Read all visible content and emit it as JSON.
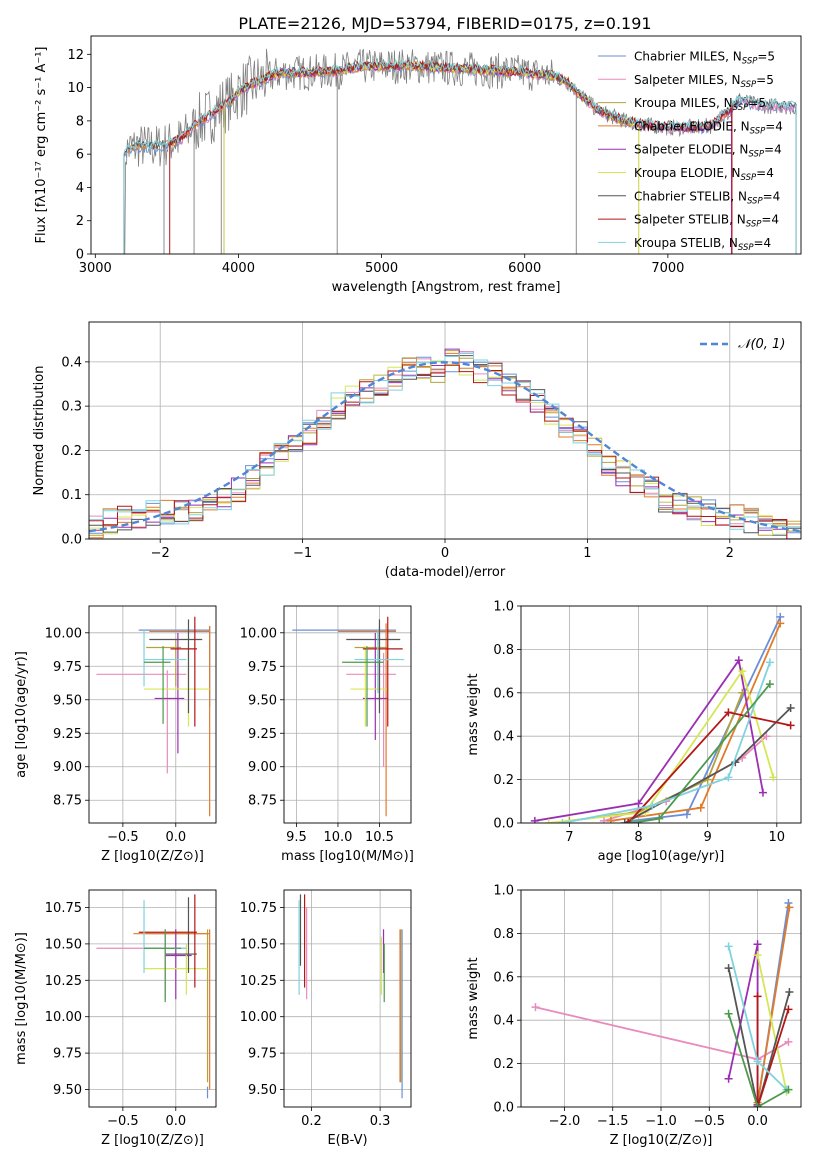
{
  "title": "PLATE=2126, MJD=53794, FIBERID=0175, z=0.191",
  "colors": {
    "Chabrier MILES": "#6a8fd6",
    "Salpeter MILES": "#e88bbd",
    "Kroupa MILES": "#b3a23a",
    "Chabrier ELODIE": "#e07b2c",
    "Salpeter ELODIE": "#9b2fb2",
    "Kroupa ELODIE": "#d7e655",
    "Chabrier STELIB": "#555555",
    "Salpeter STELIB": "#b31717",
    "Kroupa STELIB": "#7fd3df"
  },
  "chart_data": [
    {
      "id": "spectrum",
      "type": "line",
      "xlabel": "wavelength [Angstrom, rest frame]",
      "ylabel": "Flux [f",
      "xlim": [
        2970,
        7930
      ],
      "ylim": [
        0,
        13.1
      ],
      "xticks": [
        3000,
        4000,
        5000,
        6000,
        7000
      ],
      "yticks": [
        0,
        2,
        4,
        6,
        8,
        10,
        12
      ],
      "grid": false,
      "legend": "upper-right",
      "legend_labels": [
        "Chabrier MILES, N_SSP=5",
        "Salpeter MILES, N_SSP=5",
        "Kroupa MILES, N_SSP=5",
        "Chabrier ELODIE, N_SSP=4",
        "Salpeter ELODIE, N_SSP=4",
        "Kroupa ELODIE, N_SSP=4",
        "Chabrier STELIB, N_SSP=4",
        "Salpeter STELIB, N_SSP=4",
        "Kroupa STELIB, N_SSP=4"
      ],
      "data_x": [
        3200,
        3230,
        3300,
        3400,
        3500,
        3600,
        3700,
        3800,
        3900,
        3950,
        4000,
        4100,
        4200,
        4300,
        4500,
        4700,
        4800,
        5000,
        5200,
        5400,
        5600,
        5800,
        6000,
        6200,
        6300,
        6400,
        6500,
        6600,
        6700,
        6800,
        7000,
        7200,
        7300,
        7400,
        7500,
        7600,
        7700,
        7800,
        7900
      ],
      "data_y": [
        6.0,
        6.3,
        6.5,
        6.4,
        6.6,
        6.9,
        7.8,
        8.3,
        9.0,
        9.2,
        9.8,
        10.2,
        10.6,
        10.9,
        10.9,
        11.0,
        11.2,
        11.3,
        11.3,
        11.2,
        11.1,
        11.0,
        10.9,
        10.7,
        10.3,
        9.5,
        8.7,
        8.3,
        8.0,
        7.8,
        7.6,
        7.6,
        7.7,
        8.4,
        9.3,
        9.0,
        8.9,
        8.9,
        8.8
      ]
    },
    {
      "id": "residuals",
      "type": "line",
      "xlabel": "(data-model)/error",
      "ylabel": "Normed distribution",
      "xlim": [
        -2.5,
        2.5
      ],
      "ylim": [
        0,
        0.49
      ],
      "xticks": [
        -2,
        -1,
        0,
        1,
        2
      ],
      "yticks": [
        0.0,
        0.1,
        0.2,
        0.3,
        0.4
      ],
      "grid": true,
      "legend": "upper-right",
      "legend_label": "𝒩(0, 1)",
      "bin_width": 0.1,
      "histogram_values": [
        0.03,
        0.04,
        0.05,
        0.05,
        0.06,
        0.06,
        0.06,
        0.07,
        0.08,
        0.09,
        0.11,
        0.14,
        0.17,
        0.2,
        0.21,
        0.24,
        0.27,
        0.3,
        0.32,
        0.33,
        0.35,
        0.36,
        0.38,
        0.39,
        0.38,
        0.4,
        0.4,
        0.38,
        0.37,
        0.35,
        0.33,
        0.31,
        0.28,
        0.26,
        0.24,
        0.2,
        0.17,
        0.15,
        0.13,
        0.11,
        0.09,
        0.08,
        0.07,
        0.06,
        0.05,
        0.05,
        0.04,
        0.03,
        0.03,
        0.02
      ]
    },
    {
      "id": "age_vs_Z",
      "type": "scatter",
      "xlabel": "Z [log10(Z/Z⊙)]",
      "ylabel": "age  [log10(age/yr)]",
      "xlim": [
        -0.82,
        0.38
      ],
      "ylim": [
        8.58,
        10.2
      ],
      "xticks": [
        -0.5,
        0.0
      ],
      "xticklabels": [
        "−0.5",
        "0.0"
      ],
      "yticks": [
        8.75,
        9.0,
        9.25,
        9.5,
        9.75,
        10.0
      ],
      "grid": true
    },
    {
      "id": "age_vs_mass",
      "type": "scatter",
      "xlabel": "mass [log10(M/M⊙)]",
      "ylabel": "",
      "xlim": [
        9.35,
        10.88
      ],
      "ylim": [
        8.58,
        10.2
      ],
      "xticks": [
        9.5,
        10.0,
        10.5
      ],
      "yticks": [
        8.75,
        9.0,
        9.25,
        9.5,
        9.75,
        10.0
      ],
      "grid": true
    },
    {
      "id": "weight_vs_age",
      "type": "line",
      "xlabel": "age  [log10(age/yr)]",
      "ylabel": "mass weight",
      "xlim": [
        6.3,
        10.35
      ],
      "ylim": [
        0,
        1.0
      ],
      "xticks": [
        7,
        8,
        9,
        10
      ],
      "yticks": [
        0.0,
        0.2,
        0.4,
        0.6,
        0.8,
        1.0
      ],
      "grid": true,
      "series": [
        {
          "color": "#6a8fd6",
          "x": [
            7.9,
            8.7,
            10.05
          ],
          "y": [
            0.01,
            0.04,
            0.95
          ]
        },
        {
          "color": "#e88bbd",
          "x": [
            7.5,
            8.4,
            9.5,
            9.85
          ],
          "y": [
            0.01,
            0.1,
            0.3,
            0.4
          ]
        },
        {
          "color": "#b3a23a",
          "x": [
            7.0,
            8.0,
            9.0,
            9.5
          ],
          "y": [
            0.01,
            0.05,
            0.2,
            0.6
          ]
        },
        {
          "color": "#e07b2c",
          "x": [
            7.6,
            8.9,
            10.05
          ],
          "y": [
            0.01,
            0.07,
            0.92
          ]
        },
        {
          "color": "#9b2fb2",
          "x": [
            6.5,
            8.0,
            9.45,
            9.8
          ],
          "y": [
            0.01,
            0.09,
            0.75,
            0.14
          ]
        },
        {
          "color": "#d7e655",
          "x": [
            6.7,
            8.1,
            9.5,
            9.95
          ],
          "y": [
            0.0,
            0.05,
            0.7,
            0.21
          ]
        },
        {
          "color": "#555555",
          "x": [
            7.8,
            9.4,
            10.2
          ],
          "y": [
            0.0,
            0.28,
            0.53
          ]
        },
        {
          "color": "#b31717",
          "x": [
            7.85,
            9.3,
            10.2
          ],
          "y": [
            0.0,
            0.51,
            0.45
          ]
        },
        {
          "color": "#7fd3df",
          "x": [
            6.9,
            8.2,
            9.3,
            9.9
          ],
          "y": [
            0.0,
            0.08,
            0.21,
            0.74
          ]
        },
        {
          "color": "#4c9a4c",
          "x": [
            7.9,
            8.3,
            9.9
          ],
          "y": [
            0.0,
            0.02,
            0.64
          ]
        }
      ]
    },
    {
      "id": "mass_vs_Z",
      "type": "scatter",
      "xlabel": "Z [log10(Z/Z⊙)]",
      "ylabel": "mass [log10(M/M⊙)]",
      "xlim": [
        -0.82,
        0.38
      ],
      "ylim": [
        9.38,
        10.87
      ],
      "xticks": [
        -0.5,
        0.0
      ],
      "xticklabels": [
        "−0.5",
        "0.0"
      ],
      "yticks": [
        9.5,
        9.75,
        10.0,
        10.25,
        10.5,
        10.75
      ],
      "grid": true
    },
    {
      "id": "mass_vs_ebv",
      "type": "scatter",
      "xlabel": "E(B-V)",
      "ylabel": "",
      "xlim": [
        0.16,
        0.345
      ],
      "ylim": [
        9.38,
        10.87
      ],
      "xticks": [
        0.2,
        0.3
      ],
      "yticks": [
        9.5,
        9.75,
        10.0,
        10.25,
        10.5,
        10.75
      ],
      "grid": true
    },
    {
      "id": "weight_vs_Z",
      "type": "line",
      "xlabel": "Z [log10(Z/Z⊙)]",
      "ylabel": "mass weight",
      "xlim": [
        -2.45,
        0.45
      ],
      "ylim": [
        0,
        1.0
      ],
      "xticks": [
        -2.0,
        -1.5,
        -1.0,
        -0.5,
        0.0
      ],
      "xticklabels": [
        "−2.0",
        "−1.5",
        "−1.0",
        "−0.5",
        "0.0"
      ],
      "yticks": [
        0.0,
        0.2,
        0.4,
        0.6,
        0.8,
        1.0
      ],
      "grid": true,
      "series": [
        {
          "color": "#e88bbd",
          "x": [
            -2.3,
            0.0,
            0.32
          ],
          "y": [
            0.46,
            0.22,
            0.3
          ]
        },
        {
          "color": "#6a8fd6",
          "x": [
            0.0,
            0.32
          ],
          "y": [
            0.01,
            0.94
          ]
        },
        {
          "color": "#e07b2c",
          "x": [
            0.0,
            0.33
          ],
          "y": [
            0.02,
            0.92
          ]
        },
        {
          "color": "#9b2fb2",
          "x": [
            -0.3,
            0.0,
            0.0
          ],
          "y": [
            0.13,
            0.75,
            0.01
          ]
        },
        {
          "color": "#d7e655",
          "x": [
            0.0,
            0.3
          ],
          "y": [
            0.7,
            0.07
          ]
        },
        {
          "color": "#555555",
          "x": [
            -0.3,
            0.0,
            0.33
          ],
          "y": [
            0.64,
            0.0,
            0.53
          ]
        },
        {
          "color": "#b31717",
          "x": [
            0.0,
            0.0,
            0.32
          ],
          "y": [
            0.51,
            0.0,
            0.45
          ]
        },
        {
          "color": "#7fd3df",
          "x": [
            -0.3,
            0.0,
            0.3
          ],
          "y": [
            0.74,
            0.21,
            0.08
          ]
        },
        {
          "color": "#4c9a4c",
          "x": [
            -0.3,
            0.0,
            0.32
          ],
          "y": [
            0.43,
            0.0,
            0.08
          ]
        }
      ]
    }
  ]
}
